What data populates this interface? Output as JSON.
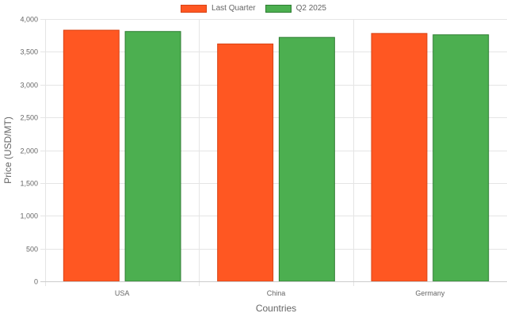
{
  "colors": {
    "last_quarter_fill": "#ff5722",
    "last_quarter_border": "#d84315",
    "q2_fill": "#4caf50",
    "q2_border": "#2e7d32",
    "grid": "#e5e5e5",
    "text": "#666666"
  },
  "chart_data": {
    "type": "bar",
    "title": "",
    "xlabel": "Countries",
    "ylabel": "Price (USD/MT)",
    "categories": [
      "USA",
      "China",
      "Germany"
    ],
    "series": [
      {
        "name": "Last Quarter",
        "values": [
          3830,
          3620,
          3780
        ]
      },
      {
        "name": "Q2 2025",
        "values": [
          3810,
          3720,
          3760
        ]
      }
    ],
    "ylim": [
      0,
      4000
    ],
    "yticks": [
      "0",
      "500",
      "1,000",
      "1,500",
      "2,000",
      "2,500",
      "3,000",
      "3,500",
      "4,000"
    ],
    "grid": true,
    "legend_position": "top-center"
  }
}
